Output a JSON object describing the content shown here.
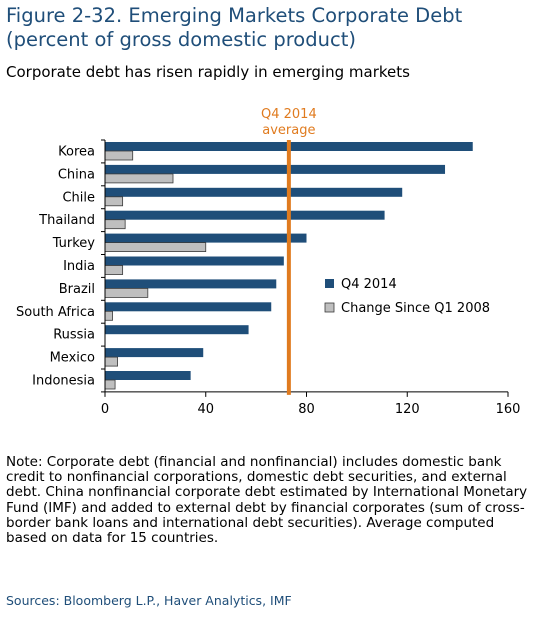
{
  "figure": {
    "title_line1": "Figure 2-32. Emerging Markets Corporate Debt",
    "title_line2": "(percent of gross domestic product)",
    "subtitle": "Corporate debt has risen rapidly in emerging markets",
    "note": "Note: Corporate debt (financial and nonfinancial) includes domestic bank credit to nonfinancial corporations, domestic debt securities, and external debt. China nonfinancial corporate debt estimated by International Monetary Fund (IMF) and added to external debt by financial corporates (sum of cross-border bank loans and international debt securities). Average computed based on data for 15 countries.",
    "sources": "Sources: Bloomberg L.P., Haver Analytics, IMF"
  },
  "chart_data": {
    "type": "bar",
    "orientation": "horizontal",
    "categories": [
      "Korea",
      "China",
      "Chile",
      "Thailand",
      "Turkey",
      "India",
      "Brazil",
      "South Africa",
      "Russia",
      "Mexico",
      "Indonesia"
    ],
    "series": [
      {
        "name": "Q4 2014",
        "color": "#1f4e79",
        "values": [
          146,
          135,
          118,
          111,
          80,
          71,
          68,
          66,
          57,
          39,
          34
        ]
      },
      {
        "name": "Change Since Q1 2008",
        "color": "#bfbfbf",
        "values": [
          11,
          27,
          7,
          8,
          40,
          7,
          17,
          3,
          0,
          5,
          4
        ]
      }
    ],
    "reference_line": {
      "value": 73,
      "label_line1": "Q4 2014",
      "label_line2": "average",
      "color": "#e07b1f"
    },
    "xlim": [
      0,
      160
    ],
    "xticks": [
      0,
      40,
      80,
      120,
      160
    ],
    "legend_position": "right-middle",
    "grid": false
  }
}
